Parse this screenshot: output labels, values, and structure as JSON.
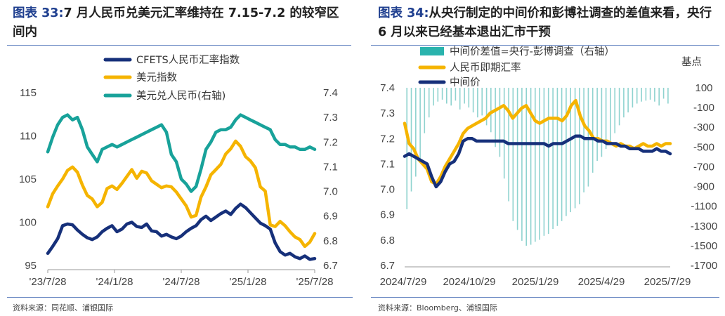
{
  "left": {
    "fig_label": "图表  33:",
    "fig_title": "7 月人民币兑美元汇率维持在 7.15-7.2 的较窄区间内",
    "source": "资料来源：同花顺、浦银国际",
    "chart_data": {
      "type": "line",
      "title": "7 月人民币兑美元汇率维持在 7.15-7.2 的较窄区间内",
      "x_labels": [
        "'23/7/28",
        "'24/1/28",
        "'24/7/28",
        "'25/1/28",
        "'25/7/28"
      ],
      "ylim_left": [
        95,
        115
      ],
      "yticks_left": [
        "95",
        "100",
        "105",
        "110",
        "115"
      ],
      "ylim_right": [
        6.7,
        7.4
      ],
      "yticks_right": [
        "6.7",
        "6.8",
        "6.9",
        "7.0",
        "7.1",
        "7.2",
        "7.3",
        "7.4"
      ],
      "legend": [
        "CFETS人民币汇率指数",
        "美元指数",
        "美元兑人民币(右轴)"
      ],
      "series": [
        {
          "name": "CFETS人民币汇率指数",
          "axis": "left",
          "color": "#16307a",
          "values": [
            96.4,
            97.2,
            98.1,
            99.6,
            99.8,
            99.7,
            99.1,
            98.6,
            98.2,
            98.0,
            98.3,
            98.9,
            99.3,
            99.6,
            98.9,
            99.2,
            99.8,
            100.0,
            99.5,
            99.4,
            99.8,
            99.0,
            98.9,
            98.4,
            98.6,
            98.3,
            98.1,
            98.4,
            98.9,
            99.3,
            99.6,
            100.3,
            100.7,
            100.2,
            100.6,
            101.0,
            101.3,
            100.9,
            101.6,
            102.1,
            101.7,
            101.1,
            100.5,
            99.9,
            99.6,
            99.2,
            97.6,
            96.6,
            96.2,
            96.4,
            96.0,
            95.8,
            96.1,
            95.7,
            95.8
          ]
        },
        {
          "name": "美元指数",
          "axis": "left",
          "color": "#f5b400",
          "values": [
            101.8,
            103.3,
            104.2,
            105.0,
            106.0,
            106.4,
            105.8,
            104.3,
            103.1,
            102.7,
            101.8,
            102.3,
            103.9,
            104.2,
            103.8,
            104.5,
            105.3,
            106.1,
            105.1,
            105.9,
            105.7,
            104.8,
            104.4,
            104.0,
            104.2,
            104.1,
            103.5,
            102.7,
            101.9,
            100.6,
            100.8,
            102.9,
            104.1,
            105.5,
            106.1,
            106.7,
            107.9,
            108.5,
            109.4,
            108.8,
            107.6,
            107.1,
            106.3,
            104.1,
            103.6,
            99.7,
            99.5,
            100.1,
            99.6,
            98.9,
            98.3,
            98.0,
            97.2,
            97.7,
            98.7
          ]
        },
        {
          "name": "美元兑人民币(右轴)",
          "axis": "right",
          "color": "#18a29a",
          "values": [
            7.16,
            7.22,
            7.27,
            7.3,
            7.31,
            7.29,
            7.3,
            7.25,
            7.18,
            7.15,
            7.12,
            7.17,
            7.18,
            7.19,
            7.18,
            7.19,
            7.2,
            7.21,
            7.22,
            7.23,
            7.24,
            7.25,
            7.26,
            7.27,
            7.24,
            7.15,
            7.12,
            7.05,
            7.03,
            7.0,
            7.02,
            7.09,
            7.17,
            7.2,
            7.24,
            7.25,
            7.25,
            7.26,
            7.29,
            7.31,
            7.3,
            7.29,
            7.28,
            7.27,
            7.26,
            7.25,
            7.21,
            7.19,
            7.19,
            7.18,
            7.18,
            7.17,
            7.17,
            7.18,
            7.17
          ]
        }
      ]
    }
  },
  "right": {
    "fig_label": "图表  34:",
    "fig_title": "从央行制定的中间价和彭博社调查的差值来看，央行 6 月以来已经基本退出汇市干预",
    "source": "资料来源：Bloomberg、浦银国际",
    "unit_label": "基点",
    "chart_data": {
      "type": "line+bar",
      "x_labels": [
        "2024/7/29",
        "2024/10/29",
        "2025/1/29",
        "2025/4/29",
        "2025/7/29"
      ],
      "ylim_left": [
        6.7,
        7.4
      ],
      "yticks_left": [
        "6.7",
        "6.8",
        "6.9",
        "7.0",
        "7.1",
        "7.2",
        "7.3",
        "7.4"
      ],
      "ylim_right": [
        -1700,
        100
      ],
      "yticks_right": [
        "100",
        "-100",
        "-300",
        "-500",
        "-700",
        "-900",
        "-1100",
        "-1300",
        "-1500",
        "-1700"
      ],
      "legend": [
        "中间价差值=央行-彭博调查（右轴）",
        "人民币即期汇率",
        "中间价"
      ],
      "series": [
        {
          "name": "中间价差值=央行-彭博调查（右轴）",
          "axis": "right",
          "type": "bar",
          "color": "#2ab3ad",
          "values": [
            -1130,
            -950,
            -800,
            -620,
            -360,
            -200,
            -80,
            -40,
            -20,
            -60,
            -80,
            -30,
            -120,
            -60,
            -100,
            -150,
            -200,
            -180,
            -280,
            -350,
            -500,
            -600,
            -820,
            -1050,
            -1250,
            -1340,
            -1450,
            -1500,
            -1490,
            -1460,
            -1440,
            -1400,
            -1380,
            -1330,
            -1300,
            -1250,
            -1200,
            -1160,
            -1120,
            -1080,
            -960,
            -900,
            -760,
            -640,
            -600,
            -520,
            -440,
            -360,
            -280,
            -200,
            -150,
            -100,
            -60,
            -40,
            -30,
            -20,
            -40,
            -80,
            -10,
            -60
          ]
        },
        {
          "name": "人民币即期汇率",
          "axis": "left",
          "type": "line",
          "color": "#f5b400",
          "values": [
            7.26,
            7.18,
            7.16,
            7.12,
            7.1,
            7.08,
            7.03,
            7.02,
            7.05,
            7.09,
            7.12,
            7.15,
            7.18,
            7.22,
            7.24,
            7.25,
            7.26,
            7.27,
            7.28,
            7.3,
            7.31,
            7.32,
            7.33,
            7.31,
            7.28,
            7.3,
            7.32,
            7.33,
            7.3,
            7.27,
            7.26,
            7.27,
            7.28,
            7.28,
            7.28,
            7.27,
            7.29,
            7.33,
            7.35,
            7.29,
            7.25,
            7.23,
            7.2,
            7.2,
            7.19,
            7.19,
            7.18,
            7.17,
            7.18,
            7.17,
            7.17,
            7.16,
            7.17,
            7.18,
            7.17,
            7.17,
            7.18,
            7.17,
            7.18,
            7.18
          ]
        },
        {
          "name": "中间价",
          "axis": "left",
          "type": "line",
          "color": "#16307a",
          "values": [
            7.13,
            7.14,
            7.13,
            7.12,
            7.11,
            7.1,
            7.05,
            7.01,
            7.03,
            7.07,
            7.1,
            7.11,
            7.14,
            7.19,
            7.2,
            7.2,
            7.19,
            7.19,
            7.19,
            7.19,
            7.19,
            7.19,
            7.19,
            7.18,
            7.18,
            7.18,
            7.18,
            7.18,
            7.18,
            7.18,
            7.18,
            7.18,
            7.17,
            7.18,
            7.18,
            7.18,
            7.19,
            7.2,
            7.21,
            7.21,
            7.2,
            7.2,
            7.2,
            7.19,
            7.19,
            7.18,
            7.18,
            7.18,
            7.17,
            7.17,
            7.16,
            7.16,
            7.16,
            7.15,
            7.15,
            7.15,
            7.16,
            7.15,
            7.15,
            7.14
          ]
        }
      ]
    }
  }
}
